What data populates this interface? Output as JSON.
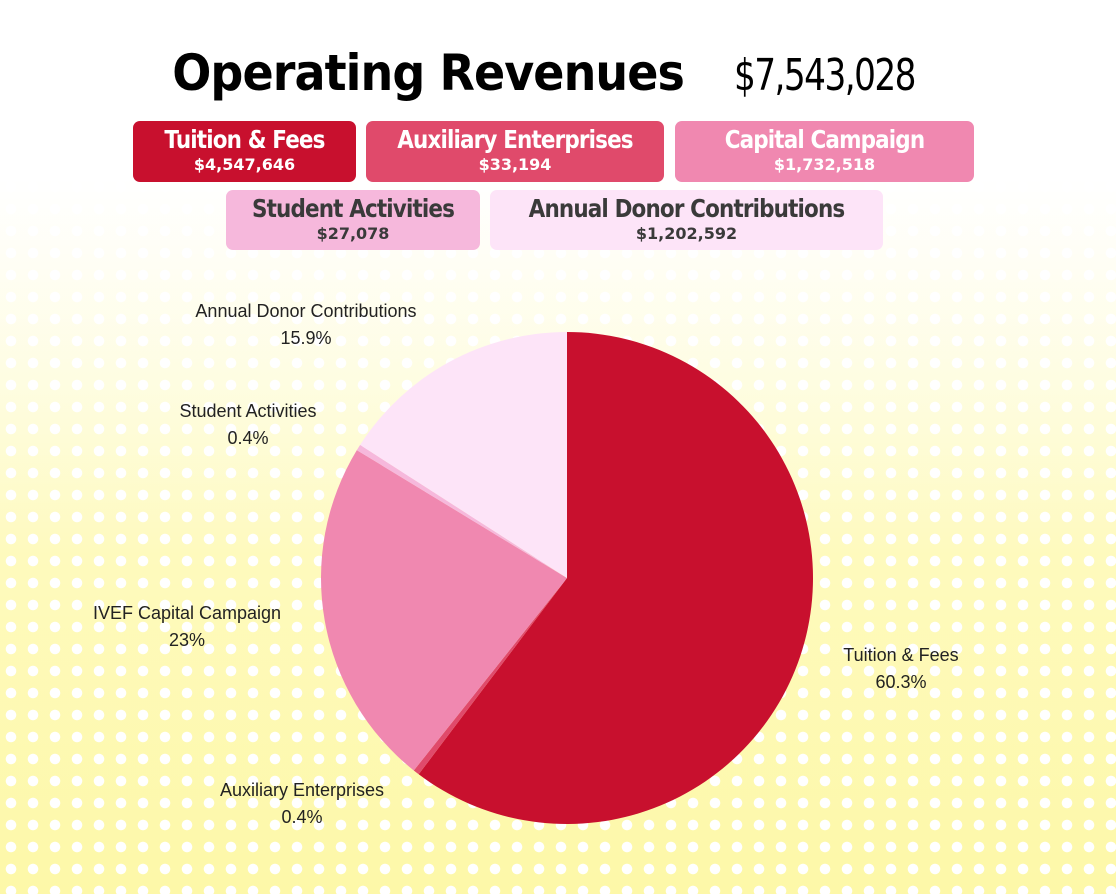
{
  "title": "Operating Revenues",
  "total": "$7,543,028",
  "summary_boxes": [
    {
      "name": "Tuition & Fees",
      "value": "$4,547,646",
      "color": "#c8102e"
    },
    {
      "name": "Auxiliary Enterprises",
      "value": "$33,194",
      "color": "#e04a6b"
    },
    {
      "name": "Capital Campaign",
      "value": "$1,732,518",
      "color": "#f088b0"
    },
    {
      "name": "Student Activities",
      "value": "$27,078",
      "color": "#f6b8dc"
    },
    {
      "name": "Annual Donor Contributions",
      "value": "$1,202,592",
      "color": "#fde4f8"
    }
  ],
  "chart_data": {
    "type": "pie",
    "title": "Operating Revenues",
    "slices": [
      {
        "label": "Tuition & Fees",
        "percent_label": "60.3%",
        "value": 60.3,
        "color": "#c8102e"
      },
      {
        "label": "Auxiliary Enterprises",
        "percent_label": "0.4%",
        "value": 0.4,
        "color": "#e04a6b"
      },
      {
        "label": "IVEF Capital Campaign",
        "percent_label": "23%",
        "value": 23.0,
        "color": "#f088b0"
      },
      {
        "label": "Student Activities",
        "percent_label": "0.4%",
        "value": 0.4,
        "color": "#f6b8dc"
      },
      {
        "label": "Annual Donor Contributions",
        "percent_label": "15.9%",
        "value": 15.9,
        "color": "#fde4f8"
      }
    ],
    "start_angle": "top",
    "direction": "clockwise"
  }
}
